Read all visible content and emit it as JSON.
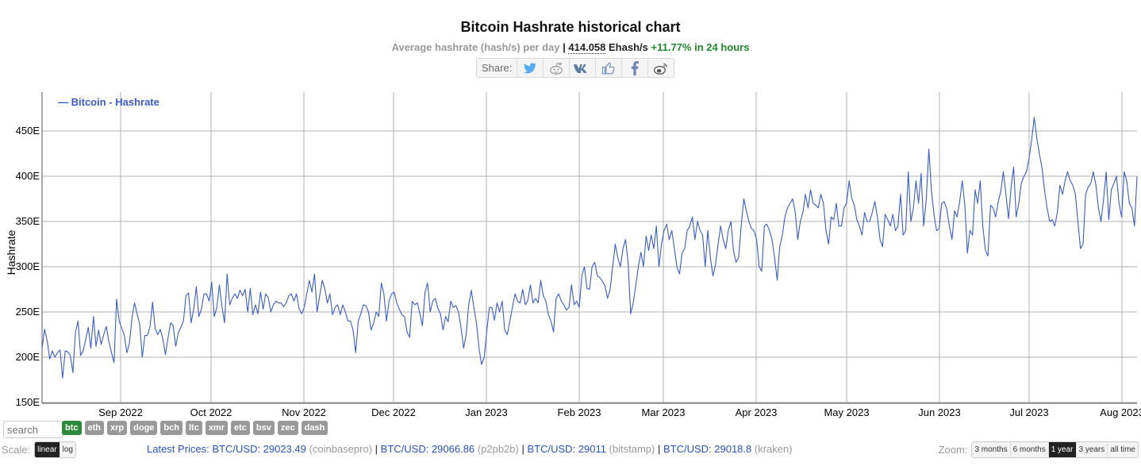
{
  "header": {
    "title": "Bitcoin Hashrate historical chart",
    "subtitle_label": "Average hashrate (hash/s) per day",
    "separator": "|",
    "current_value": "414.058",
    "current_unit": "Ehash/s",
    "change": "+11.77% in 24 hours"
  },
  "share": {
    "label": "Share:",
    "icons": [
      "twitter-icon",
      "reddit-icon",
      "vk-icon",
      "like-icon",
      "facebook-icon",
      "weibo-icon"
    ]
  },
  "colors": {
    "line": "#3a5bd0",
    "grid": "#b0b0b0",
    "positive": "#1e8a2e",
    "active_coin": "#2c8a3a",
    "inactive_coin": "#999999",
    "link": "#2a50c8"
  },
  "chart_data": {
    "type": "line",
    "title": "Bitcoin Hashrate historical chart",
    "subtitle": "Average hashrate (hash/s) per day",
    "xlabel": "",
    "ylabel": "Hashrate",
    "ylim": [
      150,
      480
    ],
    "y_unit": "E",
    "y_ticks": [
      "150E",
      "200E",
      "250E",
      "300E",
      "350E",
      "400E",
      "450E"
    ],
    "x_ticks": [
      "Sep 2022",
      "Oct 2022",
      "Nov 2022",
      "Dec 2022",
      "Jan 2023",
      "Feb 2023",
      "Mar 2023",
      "Apr 2023",
      "May 2023",
      "Jun 2023",
      "Jul 2023",
      "Aug 2023"
    ],
    "grid": true,
    "legend_position": "top-left",
    "x_start": "2022-08-05",
    "x_end": "2023-08-06",
    "series": [
      {
        "name": "Bitcoin - Hashrate",
        "values": [
          210,
          231,
          218,
          198,
          207,
          200,
          205,
          208,
          177,
          207,
          206,
          202,
          183,
          228,
          240,
          202,
          207,
          220,
          233,
          210,
          245,
          212,
          230,
          214,
          225,
          234,
          217,
          205,
          194,
          264,
          240,
          232,
          224,
          205,
          215,
          244,
          260,
          248,
          236,
          200,
          224,
          224,
          234,
          261,
          232,
          225,
          231,
          220,
          203,
          221,
          238,
          235,
          212,
          227,
          233,
          240,
          268,
          271,
          238,
          253,
          278,
          245,
          253,
          270,
          270,
          262,
          283,
          245,
          255,
          280,
          256,
          238,
          292,
          258,
          265,
          270,
          265,
          274,
          268,
          275,
          250,
          276,
          247,
          258,
          248,
          272,
          253,
          270,
          266,
          250,
          258,
          262,
          260,
          260,
          256,
          260,
          268,
          270,
          262,
          270,
          254,
          248,
          255,
          270,
          285,
          272,
          292,
          250,
          268,
          285,
          276,
          260,
          270,
          247,
          255,
          258,
          247,
          258,
          250,
          240,
          240,
          230,
          205,
          240,
          248,
          258,
          257,
          250,
          230,
          238,
          250,
          245,
          282,
          270,
          240,
          262,
          270,
          272,
          260,
          253,
          247,
          245,
          228,
          222,
          262,
          258,
          260,
          248,
          235,
          272,
          282,
          250,
          262,
          265,
          254,
          248,
          230,
          245,
          239,
          262,
          255,
          257,
          250,
          233,
          210,
          225,
          258,
          274,
          255,
          238,
          210,
          192,
          200,
          228,
          255,
          255,
          241,
          260,
          250,
          262,
          230,
          225,
          240,
          255,
          270,
          262,
          260,
          275,
          258,
          263,
          280,
          260,
          265,
          260,
          285,
          268,
          262,
          247,
          240,
          228,
          265,
          270,
          262,
          258,
          252,
          255,
          280,
          258,
          262,
          255,
          290,
          300,
          276,
          275,
          300,
          305,
          290,
          288,
          284,
          279,
          265,
          275,
          300,
          325,
          310,
          300,
          320,
          330,
          305,
          248,
          260,
          280,
          300,
          316,
          300,
          334,
          318,
          335,
          320,
          345,
          300,
          325,
          340,
          347,
          330,
          340,
          320,
          300,
          292,
          315,
          320,
          340,
          345,
          355,
          330,
          350,
          340,
          335,
          300,
          340,
          310,
          290,
          302,
          325,
          345,
          330,
          320,
          340,
          350,
          318,
          305,
          310,
          345,
          375,
          362,
          350,
          342,
          340,
          330,
          300,
          295,
          345,
          347,
          340,
          330,
          310,
          285,
          322,
          335,
          355,
          365,
          370,
          375,
          360,
          330,
          350,
          360,
          380,
          365,
          385,
          370,
          368,
          365,
          380,
          370,
          340,
          325,
          355,
          352,
          370,
          345,
          345,
          365,
          370,
          395,
          376,
          368,
          352,
          345,
          335,
          360,
          350,
          350,
          360,
          372,
          355,
          330,
          322,
          358,
          352,
          345,
          358,
          340,
          345,
          380,
          335,
          340,
          405,
          350,
          365,
          395,
          370,
          403,
          345,
          375,
          430,
          385,
          358,
          340,
          342,
          370,
          372,
          363,
          345,
          330,
          362,
          355,
          372,
          395,
          368,
          315,
          340,
          335,
          385,
          370,
          395,
          345,
          318,
          312,
          368,
          365,
          355,
          372,
          383,
          405,
          380,
          353,
          388,
          410,
          355,
          370,
          392,
          400,
          405,
          420,
          440,
          465,
          442,
          425,
          410,
          385,
          365,
          350,
          352,
          345,
          360,
          390,
          380,
          395,
          405,
          395,
          390,
          380,
          350,
          320,
          325,
          380,
          388,
          392,
          405,
          390,
          365,
          350,
          375,
          405,
          352,
          385,
          392,
          400,
          370,
          355,
          405,
          395,
          370,
          365,
          345,
          400
        ]
      }
    ]
  },
  "controls": {
    "search_placeholder": "search",
    "coins": [
      {
        "label": "btc",
        "active": true
      },
      {
        "label": "eth",
        "active": false
      },
      {
        "label": "xrp",
        "active": false
      },
      {
        "label": "doge",
        "active": false
      },
      {
        "label": "bch",
        "active": false
      },
      {
        "label": "ltc",
        "active": false
      },
      {
        "label": "xmr",
        "active": false
      },
      {
        "label": "etc",
        "active": false
      },
      {
        "label": "bsv",
        "active": false
      },
      {
        "label": "zec",
        "active": false
      },
      {
        "label": "dash",
        "active": false
      }
    ],
    "scale_label": "Scale:",
    "scale_options": [
      {
        "label": "linear",
        "active": true
      },
      {
        "label": "log",
        "active": false
      }
    ],
    "zoom_label": "Zoom:",
    "zoom_options": [
      {
        "label": "3 months",
        "active": false
      },
      {
        "label": "6 months",
        "active": false
      },
      {
        "label": "1 year",
        "active": true
      },
      {
        "label": "3 years",
        "active": false
      },
      {
        "label": "all time",
        "active": false
      }
    ]
  },
  "prices": {
    "label": "Latest Prices:",
    "items": [
      {
        "pair": "BTC/USD:",
        "value": "29023.49",
        "exchange": "(coinbasepro)"
      },
      {
        "pair": "BTC/USD:",
        "value": "29066.86",
        "exchange": "(p2pb2b)"
      },
      {
        "pair": "BTC/USD:",
        "value": "29011",
        "exchange": "(bitstamp)"
      },
      {
        "pair": "BTC/USD:",
        "value": "29018.8",
        "exchange": "(kraken)"
      }
    ]
  }
}
